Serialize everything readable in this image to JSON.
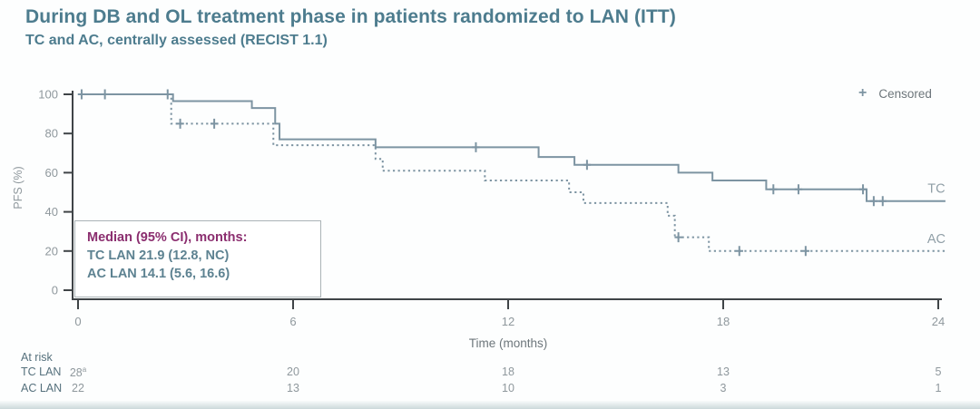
{
  "header": {
    "title": "During DB and OL treatment phase in patients randomized to LAN (ITT)",
    "subtitle": "TC and AC, centrally assessed (RECIST 1.1)"
  },
  "legend": {
    "marker": "+",
    "label": "Censored"
  },
  "colors": {
    "title": "#4d7c8e",
    "curve": "#7d94a2",
    "median_heading": "#8b2e6f",
    "median_text": "#5d8291",
    "axis": "#3f4447",
    "tick_text": "#8f989d",
    "muted_text": "#6d767b",
    "series_label": "#909fa7",
    "risk_label": "#55707c"
  },
  "chart_data": {
    "type": "line",
    "subtype": "kaplan-meier-step",
    "title": "During DB and OL treatment phase in patients randomized to LAN (ITT)",
    "xlabel": "Time (months)",
    "ylabel": "PFS (%)",
    "xlim": [
      0,
      24
    ],
    "xticks": [
      0,
      6,
      12,
      18,
      24
    ],
    "ylim": [
      0,
      100
    ],
    "yticks": [
      0,
      20,
      40,
      60,
      80,
      100
    ],
    "grid": false,
    "legend_position": "top-right",
    "x_end": 24.2,
    "series": [
      {
        "name": "TC",
        "line_style": "solid",
        "steps": [
          [
            0,
            100
          ],
          [
            2.65,
            96.5
          ],
          [
            4.85,
            93
          ],
          [
            5.5,
            85
          ],
          [
            5.62,
            77
          ],
          [
            8.3,
            73
          ],
          [
            12.85,
            68
          ],
          [
            13.85,
            64
          ],
          [
            16.75,
            60
          ],
          [
            17.7,
            56
          ],
          [
            19.2,
            51.5
          ],
          [
            22.0,
            45.5
          ]
        ],
        "censors": [
          [
            0.1,
            100
          ],
          [
            0.75,
            100
          ],
          [
            2.5,
            100
          ],
          [
            11.1,
            73
          ],
          [
            14.2,
            64
          ],
          [
            19.4,
            51.5
          ],
          [
            20.1,
            51.5
          ],
          [
            21.9,
            51.5
          ],
          [
            22.2,
            45.5
          ],
          [
            22.45,
            45.5
          ]
        ]
      },
      {
        "name": "AC",
        "line_style": "dotted",
        "steps": [
          [
            0,
            100
          ],
          [
            2.6,
            85
          ],
          [
            5.45,
            74
          ],
          [
            8.3,
            67
          ],
          [
            8.5,
            61
          ],
          [
            11.35,
            56
          ],
          [
            13.7,
            50
          ],
          [
            14.1,
            44.5
          ],
          [
            16.45,
            38
          ],
          [
            16.65,
            27
          ],
          [
            17.6,
            20
          ]
        ],
        "censors": [
          [
            2.85,
            85
          ],
          [
            3.8,
            85
          ],
          [
            16.75,
            27
          ],
          [
            18.45,
            20
          ],
          [
            20.3,
            20
          ]
        ]
      }
    ],
    "annotation": {
      "heading": "Median (95% CI), months:",
      "lines": [
        "TC LAN 21.9 (12.8, NC)",
        "AC LAN 14.1 (5.6, 16.6)"
      ]
    },
    "at_risk": {
      "label": "At risk",
      "times": [
        0,
        6,
        12,
        18,
        24
      ],
      "rows": [
        {
          "name": "TC LAN",
          "values": [
            "28^a",
            "20",
            "18",
            "13",
            "5"
          ]
        },
        {
          "name": "AC LAN",
          "values": [
            "22",
            "13",
            "10",
            "3",
            "1"
          ]
        }
      ]
    }
  }
}
